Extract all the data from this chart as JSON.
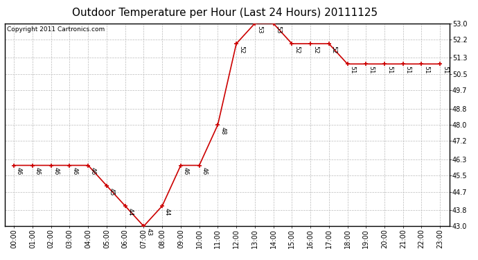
{
  "title": "Outdoor Temperature per Hour (Last 24 Hours) 20111125",
  "copyright": "Copyright 2011 Cartronics.com",
  "hours": [
    "00:00",
    "01:00",
    "02:00",
    "03:00",
    "04:00",
    "05:00",
    "06:00",
    "07:00",
    "08:00",
    "09:00",
    "10:00",
    "11:00",
    "12:00",
    "13:00",
    "14:00",
    "15:00",
    "16:00",
    "17:00",
    "18:00",
    "19:00",
    "20:00",
    "21:00",
    "22:00",
    "23:00"
  ],
  "temps": [
    46,
    46,
    46,
    46,
    46,
    45,
    44,
    43,
    44,
    46,
    46,
    48,
    52,
    53,
    53,
    52,
    52,
    52,
    51,
    51,
    51,
    51,
    51,
    51
  ],
  "ylim_min": 43.0,
  "ylim_max": 53.0,
  "yticks": [
    43.0,
    43.8,
    44.7,
    45.5,
    46.3,
    47.2,
    48.0,
    48.8,
    49.7,
    50.5,
    51.3,
    52.2,
    53.0
  ],
  "line_color": "#cc0000",
  "marker_color": "#cc0000",
  "bg_color": "#ffffff",
  "grid_color": "#bbbbbb",
  "title_fontsize": 11,
  "label_fontsize": 7,
  "annot_fontsize": 6.5,
  "copyright_fontsize": 6.5
}
